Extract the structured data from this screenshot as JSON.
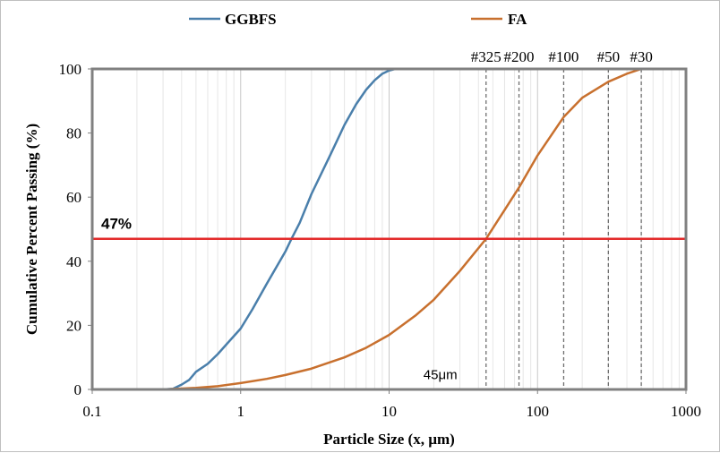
{
  "chart_data": {
    "type": "line",
    "xscale": "log",
    "xlim": [
      0.1,
      1000
    ],
    "ylim": [
      0,
      100
    ],
    "xlabel": "Particle Size (x, µm)",
    "ylabel": "Cumulative Percent Passing (%)",
    "x_ticks": [
      "0.1",
      "1",
      "10",
      "100",
      "1000"
    ],
    "y_ticks": [
      "0",
      "20",
      "40",
      "60",
      "80",
      "100"
    ],
    "grid": "vertical log minor gridlines",
    "legend_position": "top",
    "series": [
      {
        "name": "GGBFS",
        "color": "#4a7fab",
        "x": [
          0.1,
          0.3,
          0.35,
          0.4,
          0.45,
          0.5,
          0.6,
          0.7,
          0.8,
          1.0,
          1.2,
          1.5,
          2.0,
          2.2,
          2.5,
          3.0,
          4.0,
          5.0,
          6.0,
          7.0,
          8.0,
          9.0,
          10.0,
          11.0,
          12.0,
          14.0,
          20.0,
          50.0,
          100.0,
          1000.0
        ],
        "y": [
          0,
          0,
          0.2,
          1.5,
          3.0,
          5.5,
          8.0,
          11.0,
          14.0,
          19.0,
          25.0,
          33.0,
          43.0,
          47.0,
          52.0,
          61.0,
          73.0,
          82.5,
          89.0,
          93.5,
          96.5,
          98.5,
          99.5,
          100,
          100,
          100,
          100,
          100,
          100,
          100
        ]
      },
      {
        "name": "FA",
        "color": "#c8702e",
        "x": [
          0.1,
          0.3,
          0.5,
          0.7,
          1.0,
          1.5,
          2.0,
          3.0,
          5.0,
          7.0,
          10.0,
          15.0,
          20.0,
          30.0,
          45.0,
          60.0,
          75.0,
          100.0,
          150.0,
          200.0,
          300.0,
          400.0,
          500.0,
          600.0,
          1000.0
        ],
        "y": [
          0,
          0,
          0.5,
          1.0,
          2.0,
          3.3,
          4.5,
          6.5,
          10.0,
          13.0,
          17.0,
          23.0,
          28.0,
          37.0,
          47.0,
          56.0,
          63.0,
          73.0,
          85.0,
          91.0,
          96.0,
          98.5,
          100,
          100,
          100
        ]
      }
    ],
    "reference_line": {
      "label": "47%",
      "y": 47,
      "color": "#e32b2b"
    },
    "sieve_lines": [
      {
        "label": "#325",
        "x": 45
      },
      {
        "label": "#200",
        "x": 75
      },
      {
        "label": "#100",
        "x": 150
      },
      {
        "label": "#50",
        "x": 300
      },
      {
        "label": "#30",
        "x": 500
      }
    ],
    "annotations": [
      {
        "text": "45μm",
        "x": 45,
        "y": 3
      }
    ]
  }
}
